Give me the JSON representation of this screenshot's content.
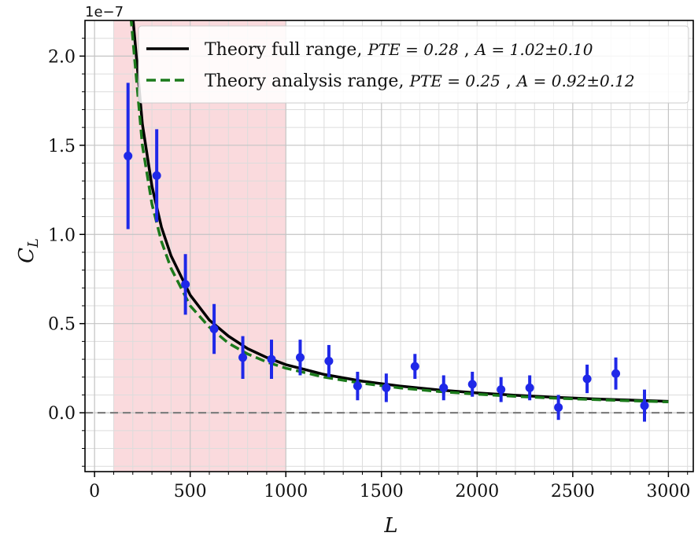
{
  "chart_data": {
    "type": "scatter",
    "xlabel": "L",
    "ylabel": "C_L",
    "y_offset_label": "1e−7",
    "xlim": [
      -50,
      3130
    ],
    "ylim": [
      -0.33,
      2.2
    ],
    "x_ticks": [
      0,
      500,
      1000,
      1500,
      2000,
      2500,
      3000
    ],
    "x_tick_labels": [
      "0",
      "500",
      "1000",
      "1500",
      "2000",
      "2500",
      "3000"
    ],
    "y_ticks": [
      0.0,
      0.5,
      1.0,
      1.5,
      2.0
    ],
    "y_tick_labels": [
      "0.0",
      "0.5",
      "1.0",
      "1.5",
      "2.0"
    ],
    "grid": true,
    "legend_position": "top-right",
    "shaded_region": {
      "x_start": 100,
      "x_end": 1000,
      "color": "#fadadd"
    },
    "reference_line": {
      "y": 0.0,
      "style": "dashed",
      "color": "#808080"
    },
    "series": [
      {
        "name": "Theory full range",
        "kind": "line",
        "style": "solid",
        "color": "#000000",
        "pte": "PTE = 0.28",
        "amp": "A = 1.02±0.10",
        "x": [
          200,
          250,
          300,
          350,
          400,
          500,
          600,
          700,
          800,
          900,
          1000,
          1200,
          1400,
          1600,
          1800,
          2000,
          2200,
          2400,
          2600,
          2800,
          3000
        ],
        "y": [
          2.22,
          1.62,
          1.27,
          1.04,
          0.88,
          0.66,
          0.52,
          0.43,
          0.36,
          0.31,
          0.27,
          0.215,
          0.177,
          0.149,
          0.128,
          0.111,
          0.098,
          0.087,
          0.078,
          0.071,
          0.064
        ]
      },
      {
        "name": "Theory analysis range",
        "kind": "line",
        "style": "dashed",
        "color": "#1b7a1b",
        "pte": "PTE = 0.25",
        "amp": "A = 0.92±0.12",
        "x": [
          190,
          250,
          300,
          350,
          400,
          500,
          600,
          700,
          800,
          900,
          1000,
          1200,
          1400,
          1600,
          1800,
          2000,
          2200,
          2400,
          2600,
          2800,
          3000
        ],
        "y": [
          2.22,
          1.5,
          1.17,
          0.96,
          0.81,
          0.6,
          0.48,
          0.39,
          0.33,
          0.285,
          0.25,
          0.2,
          0.165,
          0.139,
          0.119,
          0.104,
          0.092,
          0.082,
          0.074,
          0.067,
          0.061
        ]
      },
      {
        "name": "",
        "kind": "errorbar",
        "color": "#1f28e8",
        "x": [
          175,
          325,
          475,
          625,
          775,
          925,
          1075,
          1225,
          1375,
          1525,
          1675,
          1825,
          1975,
          2125,
          2275,
          2425,
          2575,
          2725,
          2875
        ],
        "y": [
          1.44,
          1.33,
          0.72,
          0.47,
          0.31,
          0.3,
          0.31,
          0.29,
          0.15,
          0.14,
          0.26,
          0.14,
          0.16,
          0.13,
          0.14,
          0.03,
          0.19,
          0.22,
          0.04
        ],
        "err": [
          0.41,
          0.26,
          0.17,
          0.14,
          0.12,
          0.11,
          0.1,
          0.09,
          0.08,
          0.08,
          0.07,
          0.07,
          0.07,
          0.07,
          0.07,
          0.07,
          0.08,
          0.09,
          0.09
        ]
      }
    ]
  }
}
